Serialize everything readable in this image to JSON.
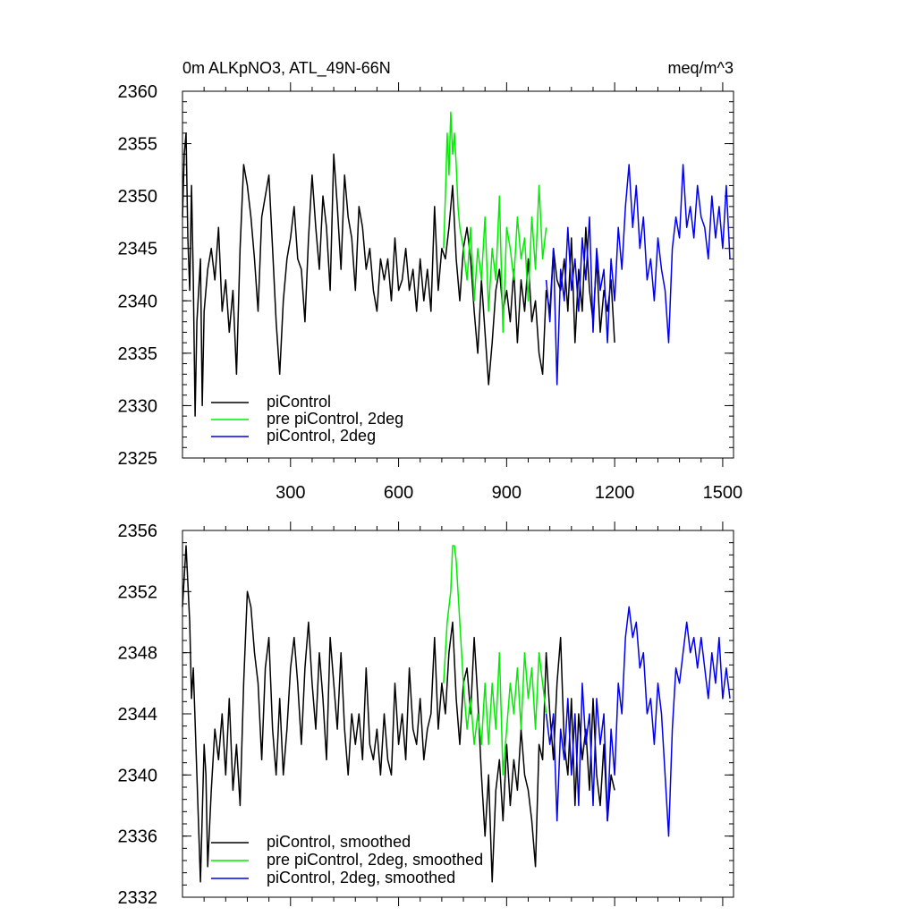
{
  "chart_data": [
    {
      "type": "line",
      "title_left": "0m ALKpNO3, ATL_49N-66N",
      "title_right": "meq/m^3",
      "xlim": [
        0,
        1530
      ],
      "ylim": [
        2325,
        2360
      ],
      "x_ticks": [
        300,
        600,
        900,
        1200,
        1500
      ],
      "x_tick_labels": [
        "300",
        "600",
        "900",
        "1200",
        "1500"
      ],
      "y_ticks": [
        2325,
        2330,
        2335,
        2340,
        2345,
        2350,
        2355,
        2360
      ],
      "y_tick_labels": [
        "2325",
        "2330",
        "2335",
        "2340",
        "2345",
        "2350",
        "2355",
        "2360"
      ],
      "grid": false,
      "legend_position": "bottom-left",
      "series": [
        {
          "name": "piControl",
          "color": "#000000",
          "x": [
            0,
            5,
            10,
            15,
            20,
            25,
            30,
            35,
            40,
            50,
            55,
            60,
            65,
            70,
            80,
            90,
            100,
            110,
            120,
            130,
            140,
            150,
            160,
            170,
            180,
            190,
            200,
            210,
            220,
            230,
            240,
            250,
            260,
            270,
            280,
            290,
            300,
            310,
            320,
            330,
            340,
            350,
            360,
            370,
            380,
            390,
            400,
            410,
            420,
            430,
            440,
            450,
            460,
            470,
            480,
            490,
            500,
            510,
            520,
            530,
            540,
            550,
            560,
            570,
            580,
            590,
            600,
            610,
            620,
            630,
            640,
            650,
            660,
            670,
            680,
            690,
            700,
            710,
            720,
            730,
            740,
            750,
            760,
            770,
            780,
            790,
            800,
            810,
            820,
            830,
            840,
            850,
            860,
            870,
            880,
            890,
            900,
            910,
            920,
            930,
            940,
            950,
            960,
            970,
            980,
            990,
            1000,
            1010,
            1020,
            1030,
            1040,
            1050,
            1060,
            1070,
            1080,
            1090,
            1100,
            1110,
            1120,
            1130,
            1140,
            1150,
            1160,
            1170,
            1180,
            1190,
            1200
          ],
          "y": [
            2348,
            2354,
            2356,
            2346,
            2341,
            2351,
            2342,
            2329,
            2338,
            2344,
            2330,
            2339,
            2341,
            2343,
            2345,
            2342,
            2347,
            2339,
            2342,
            2337,
            2341,
            2333,
            2345,
            2353,
            2351,
            2348,
            2344,
            2339,
            2348,
            2350,
            2352,
            2345,
            2338,
            2333,
            2340,
            2344,
            2346,
            2349,
            2344,
            2343,
            2338,
            2346,
            2352,
            2347,
            2343,
            2350,
            2347,
            2341,
            2354,
            2349,
            2343,
            2352,
            2348,
            2346,
            2341,
            2349,
            2347,
            2343,
            2345,
            2341,
            2339,
            2344,
            2342,
            2344,
            2340,
            2346,
            2341,
            2342,
            2345,
            2341,
            2343,
            2339,
            2344,
            2340,
            2343,
            2339,
            2349,
            2341,
            2345,
            2344,
            2347,
            2351,
            2344,
            2340,
            2345,
            2347,
            2344,
            2339,
            2335,
            2342,
            2337,
            2332,
            2336,
            2341,
            2343,
            2339,
            2341,
            2338,
            2343,
            2336,
            2342,
            2339,
            2344,
            2338,
            2340,
            2335,
            2333,
            2341,
            2339,
            2345,
            2342,
            2341,
            2344,
            2339,
            2346,
            2336,
            2343,
            2339,
            2347,
            2341,
            2338,
            2344,
            2337,
            2341,
            2339,
            2342,
            2336
          ]
        },
        {
          "name": "pre piControl, 2deg",
          "color": "#00ee00",
          "x": [
            725,
            730,
            735,
            740,
            745,
            750,
            755,
            760,
            765,
            770,
            780,
            790,
            800,
            810,
            820,
            830,
            840,
            850,
            860,
            870,
            880,
            890,
            900,
            910,
            920,
            930,
            940,
            950,
            960,
            970,
            980,
            990,
            1000,
            1010
          ],
          "y": [
            2345,
            2350,
            2356,
            2352,
            2358,
            2354,
            2356,
            2353,
            2349,
            2347,
            2345,
            2342,
            2347,
            2340,
            2345,
            2342,
            2348,
            2339,
            2345,
            2342,
            2350,
            2337,
            2347,
            2345,
            2342,
            2348,
            2344,
            2346,
            2340,
            2348,
            2343,
            2351,
            2344,
            2347
          ]
        },
        {
          "name": "piControl, 2deg",
          "color": "#0000ee",
          "x": [
            1010,
            1020,
            1030,
            1040,
            1050,
            1060,
            1070,
            1080,
            1090,
            1100,
            1110,
            1120,
            1130,
            1140,
            1150,
            1160,
            1170,
            1180,
            1190,
            1200,
            1210,
            1220,
            1230,
            1240,
            1250,
            1260,
            1270,
            1280,
            1290,
            1300,
            1310,
            1320,
            1330,
            1340,
            1350,
            1360,
            1370,
            1380,
            1390,
            1400,
            1410,
            1420,
            1430,
            1440,
            1450,
            1460,
            1470,
            1480,
            1490,
            1500,
            1510,
            1520
          ],
          "y": [
            2342,
            2338,
            2345,
            2332,
            2343,
            2340,
            2347,
            2341,
            2344,
            2339,
            2346,
            2342,
            2348,
            2337,
            2345,
            2341,
            2343,
            2336,
            2344,
            2340,
            2347,
            2343,
            2349,
            2353,
            2347,
            2351,
            2345,
            2348,
            2342,
            2344,
            2340,
            2346,
            2343,
            2341,
            2336,
            2345,
            2348,
            2346,
            2353,
            2347,
            2349,
            2346,
            2351,
            2348,
            2347,
            2344,
            2350,
            2346,
            2349,
            2345,
            2351,
            2344
          ]
        }
      ]
    },
    {
      "type": "line",
      "xlim": [
        0,
        1530
      ],
      "ylim": [
        2332,
        2356
      ],
      "x_ticks": [
        300,
        600,
        900,
        1200,
        1500
      ],
      "y_ticks": [
        2332,
        2336,
        2340,
        2344,
        2348,
        2352,
        2356
      ],
      "y_tick_labels": [
        "2332",
        "2336",
        "2340",
        "2344",
        "2348",
        "2352",
        "2356"
      ],
      "grid": false,
      "legend_position": "bottom-left",
      "series": [
        {
          "name": "piControl, smoothed",
          "color": "#000000",
          "x": [
            0,
            10,
            20,
            25,
            30,
            40,
            50,
            60,
            65,
            70,
            80,
            90,
            100,
            110,
            120,
            130,
            140,
            150,
            160,
            170,
            180,
            190,
            200,
            210,
            220,
            230,
            240,
            250,
            260,
            270,
            280,
            290,
            300,
            310,
            320,
            330,
            340,
            350,
            360,
            370,
            380,
            390,
            400,
            410,
            420,
            430,
            440,
            450,
            460,
            470,
            480,
            490,
            500,
            510,
            520,
            530,
            540,
            550,
            560,
            570,
            580,
            590,
            600,
            610,
            620,
            630,
            640,
            650,
            660,
            670,
            680,
            690,
            700,
            710,
            720,
            730,
            740,
            750,
            760,
            770,
            780,
            790,
            800,
            810,
            820,
            830,
            840,
            850,
            860,
            870,
            880,
            890,
            900,
            910,
            920,
            930,
            940,
            950,
            960,
            970,
            980,
            990,
            1000,
            1010,
            1020,
            1030,
            1040,
            1050,
            1060,
            1070,
            1080,
            1090,
            1100,
            1110,
            1120,
            1130,
            1140,
            1150,
            1160,
            1170,
            1180,
            1190,
            1200
          ],
          "y": [
            2351,
            2355,
            2350,
            2345,
            2347,
            2340,
            2333,
            2342,
            2340,
            2334,
            2339,
            2343,
            2341,
            2344,
            2340,
            2345,
            2339,
            2342,
            2338,
            2346,
            2352,
            2351,
            2348,
            2346,
            2341,
            2347,
            2349,
            2343,
            2340,
            2345,
            2340,
            2343,
            2347,
            2349,
            2346,
            2342,
            2347,
            2350,
            2346,
            2343,
            2348,
            2345,
            2341,
            2349,
            2346,
            2343,
            2348,
            2343,
            2340,
            2344,
            2342,
            2344,
            2341,
            2347,
            2342,
            2341,
            2343,
            2340,
            2344,
            2341,
            2340,
            2346,
            2342,
            2344,
            2341,
            2347,
            2343,
            2342,
            2345,
            2341,
            2343,
            2344,
            2349,
            2343,
            2346,
            2344,
            2348,
            2350,
            2345,
            2342,
            2346,
            2347,
            2344,
            2349,
            2345,
            2340,
            2336,
            2340,
            2333,
            2339,
            2341,
            2337,
            2342,
            2338,
            2341,
            2339,
            2343,
            2340,
            2339,
            2337,
            2334,
            2342,
            2341,
            2348,
            2344,
            2341,
            2346,
            2349,
            2342,
            2340,
            2345,
            2338,
            2344,
            2341,
            2343,
            2339,
            2345,
            2340,
            2338,
            2342,
            2337,
            2340,
            2339
          ]
        },
        {
          "name": "pre piControl, 2deg, smoothed",
          "color": "#00ee00",
          "x": [
            725,
            735,
            745,
            750,
            755,
            760,
            765,
            770,
            780,
            790,
            800,
            810,
            820,
            830,
            840,
            850,
            860,
            870,
            880,
            890,
            900,
            910,
            920,
            930,
            940,
            950,
            960,
            970,
            980,
            990,
            1000,
            1010
          ],
          "y": [
            2346,
            2350,
            2352,
            2355,
            2355,
            2354,
            2352,
            2350,
            2346,
            2343,
            2345,
            2342,
            2344,
            2342,
            2346,
            2342,
            2346,
            2343,
            2348,
            2340,
            2343,
            2346,
            2344,
            2347,
            2343,
            2348,
            2345,
            2347,
            2343,
            2348,
            2346,
            2344
          ]
        },
        {
          "name": "piControl, 2deg, smoothed",
          "color": "#0000ee",
          "x": [
            1010,
            1020,
            1030,
            1040,
            1050,
            1060,
            1070,
            1080,
            1090,
            1100,
            1110,
            1120,
            1130,
            1140,
            1150,
            1160,
            1170,
            1180,
            1190,
            1200,
            1210,
            1220,
            1230,
            1240,
            1250,
            1260,
            1270,
            1280,
            1290,
            1300,
            1310,
            1320,
            1330,
            1340,
            1350,
            1360,
            1370,
            1380,
            1390,
            1400,
            1410,
            1420,
            1430,
            1440,
            1450,
            1460,
            1470,
            1480,
            1490,
            1500,
            1510,
            1520
          ],
          "y": [
            2344,
            2342,
            2344,
            2337,
            2343,
            2341,
            2345,
            2340,
            2344,
            2338,
            2346,
            2342,
            2344,
            2338,
            2345,
            2342,
            2344,
            2337,
            2343,
            2340,
            2346,
            2344,
            2349,
            2351,
            2349,
            2350,
            2347,
            2348,
            2344,
            2345,
            2342,
            2346,
            2344,
            2340,
            2336,
            2343,
            2347,
            2346,
            2348,
            2350,
            2348,
            2349,
            2347,
            2349,
            2347,
            2345,
            2348,
            2346,
            2349,
            2345,
            2347,
            2345
          ]
        }
      ]
    }
  ]
}
